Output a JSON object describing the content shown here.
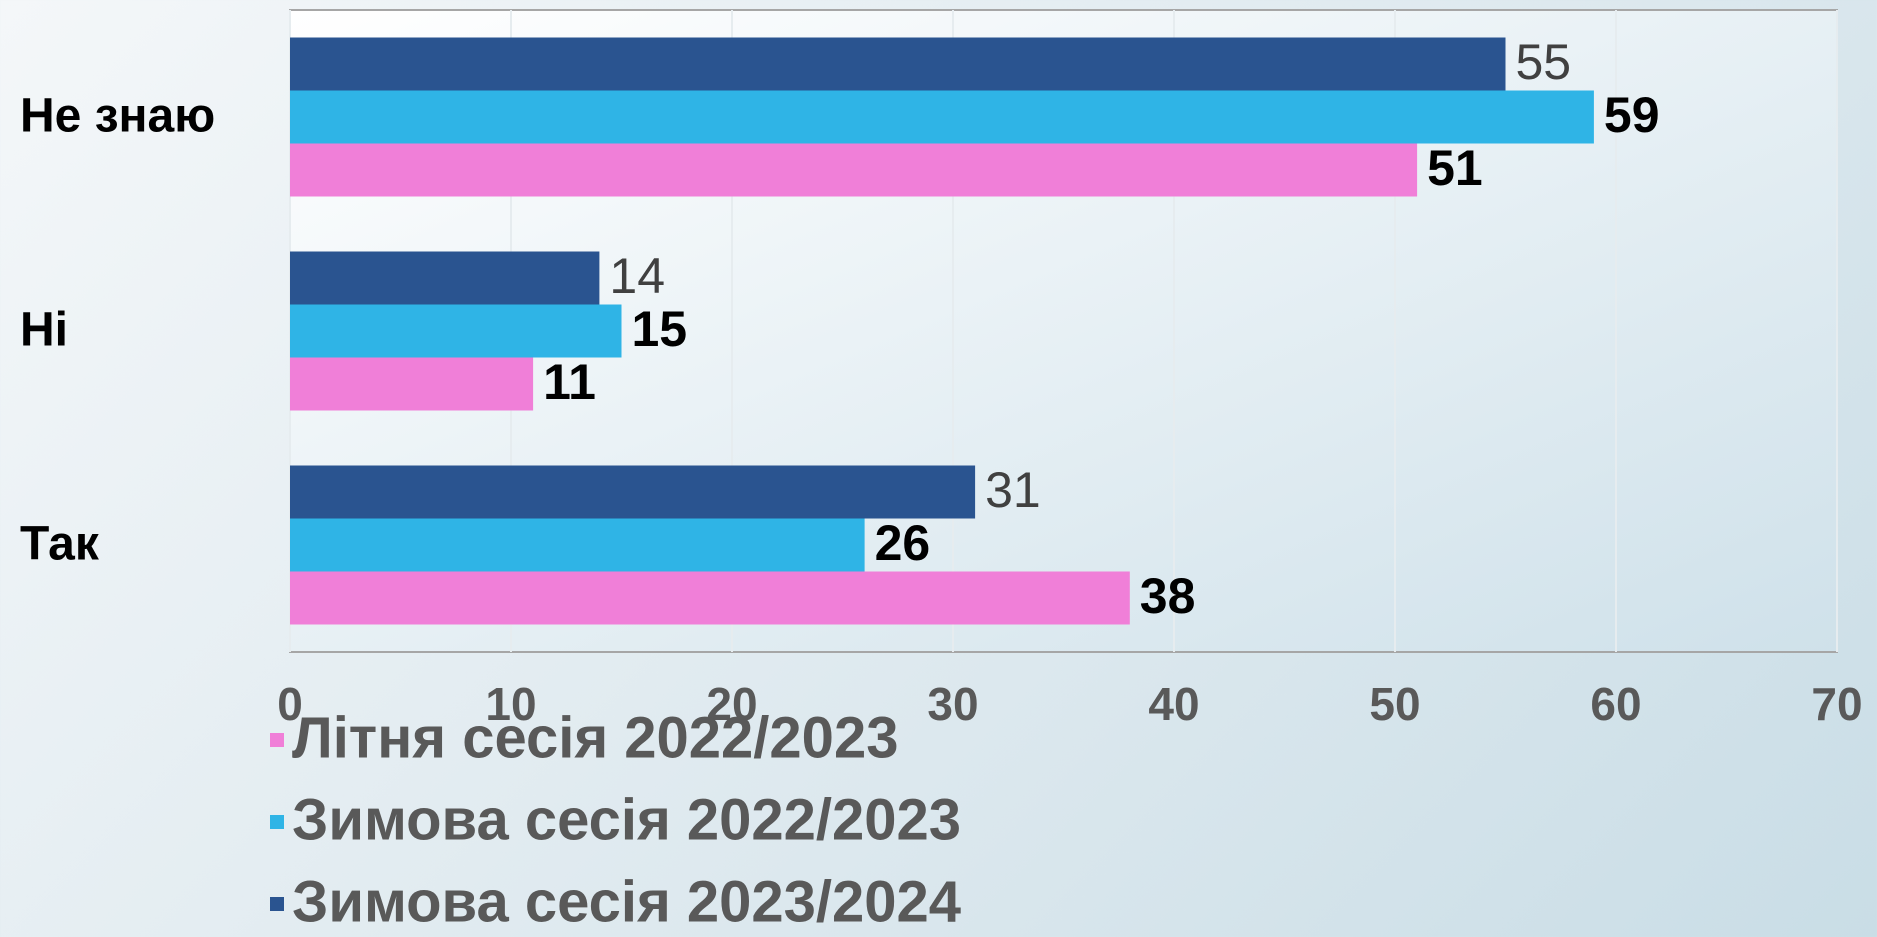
{
  "chart_data": {
    "type": "bar",
    "orientation": "horizontal",
    "categories": [
      "Не знаю",
      "Ні",
      "Так"
    ],
    "series": [
      {
        "name": "Літня сесія 2022/2023",
        "color": "#f07fd8",
        "values": [
          51,
          11,
          38
        ]
      },
      {
        "name": "Зимова сесія 2022/2023",
        "color": "#2fb4e6",
        "values": [
          59,
          15,
          26
        ]
      },
      {
        "name": "Зимова сесія 2023/2024",
        "color": "#2a5490",
        "values": [
          55,
          14,
          31
        ]
      }
    ],
    "xlim": [
      0,
      70
    ],
    "xticks": [
      0,
      10,
      20,
      30,
      40,
      50,
      60,
      70
    ],
    "grid": true
  }
}
